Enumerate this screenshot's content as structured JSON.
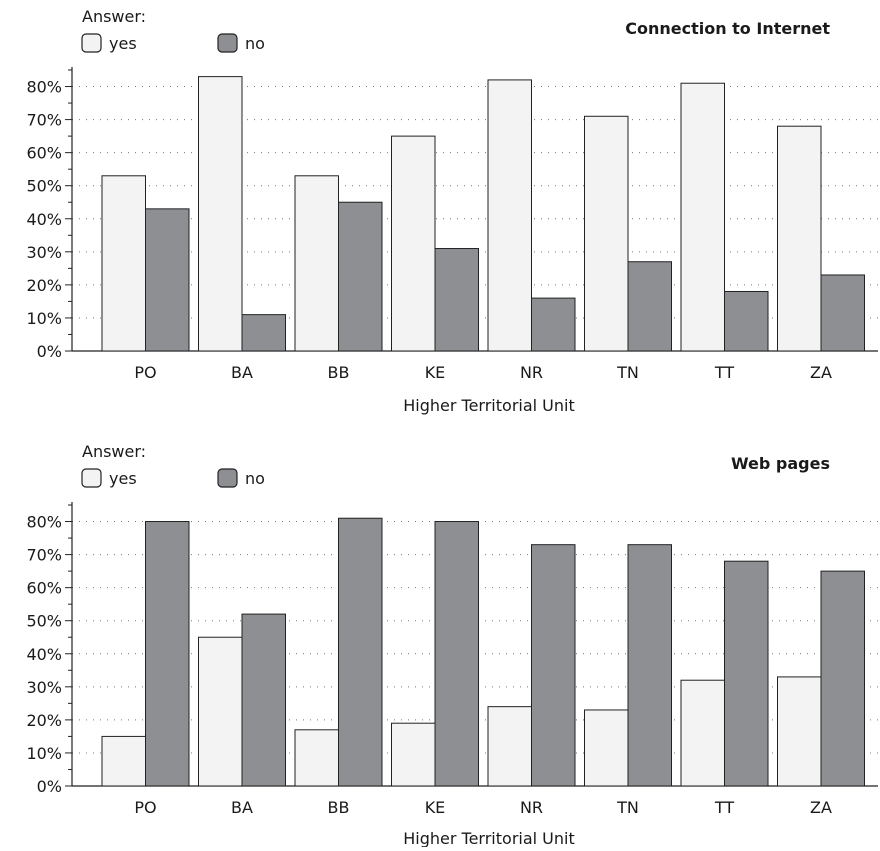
{
  "chart_data": [
    {
      "type": "bar",
      "title": "Connection to Internet",
      "legend_title": "Answer:",
      "legend_placement": "top-left",
      "xlabel": "Higher Territorial Unit",
      "ylabel": "",
      "ylim": [
        0,
        85
      ],
      "yticks": [
        "0%",
        "10%",
        "20%",
        "30%",
        "40%",
        "50%",
        "60%",
        "70%",
        "80%"
      ],
      "grid": "dotted horizontal",
      "categories": [
        "PO",
        "BA",
        "BB",
        "KE",
        "NR",
        "TN",
        "TT",
        "ZA"
      ],
      "series": [
        {
          "name": "yes",
          "color": "#f3f3f3",
          "values": [
            53,
            83,
            53,
            65,
            82,
            71,
            81,
            68
          ]
        },
        {
          "name": "no",
          "color": "#8e8f93",
          "values": [
            43,
            11,
            45,
            31,
            16,
            27,
            18,
            23
          ]
        }
      ]
    },
    {
      "type": "bar",
      "title": "Web pages",
      "legend_title": "Answer:",
      "legend_placement": "top-left",
      "xlabel": "Higher Territorial Unit",
      "ylabel": "",
      "ylim": [
        0,
        85
      ],
      "yticks": [
        "0%",
        "10%",
        "20%",
        "30%",
        "40%",
        "50%",
        "60%",
        "70%",
        "80%"
      ],
      "grid": "dotted horizontal",
      "categories": [
        "PO",
        "BA",
        "BB",
        "KE",
        "NR",
        "TN",
        "TT",
        "ZA"
      ],
      "series": [
        {
          "name": "yes",
          "color": "#f3f3f3",
          "values": [
            15,
            45,
            17,
            19,
            24,
            23,
            32,
            33
          ]
        },
        {
          "name": "no",
          "color": "#8e8f93",
          "values": [
            80,
            52,
            81,
            80,
            73,
            73,
            68,
            65
          ]
        }
      ]
    }
  ]
}
